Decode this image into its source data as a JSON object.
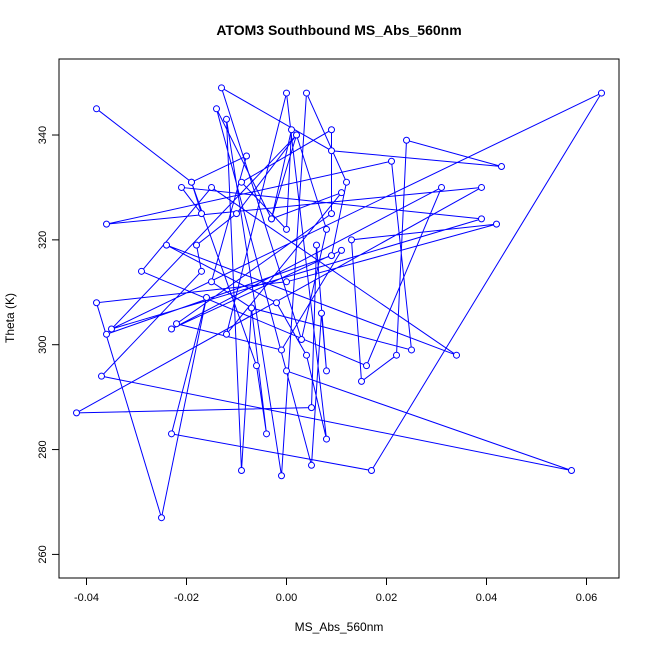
{
  "chart_data": {
    "type": "line",
    "title": "ATOM3 Southbound MS_Abs_560nm",
    "xlabel": "MS_Abs_560nm",
    "ylabel": "Theta (K)",
    "xlim": [
      -0.0455,
      0.0665
    ],
    "ylim": [
      255.5,
      354.5
    ],
    "xticks": [
      -0.04,
      -0.02,
      0.0,
      0.02,
      0.04,
      0.06
    ],
    "xtick_labels": [
      "-0.04",
      "-0.02",
      "0.00",
      "0.02",
      "0.04",
      "0.06"
    ],
    "yticks": [
      260,
      280,
      300,
      320,
      340
    ],
    "ytick_labels": [
      "260",
      "280",
      "300",
      "320",
      "340"
    ],
    "grid": false,
    "legend": "none",
    "series_color": "#0000ff",
    "series": [
      {
        "x": [
          -0.038,
          -0.019,
          -0.008,
          -0.015,
          -0.007,
          -0.009,
          -0.012,
          -0.001,
          0.004,
          0.012,
          0.009,
          -0.036,
          0.002,
          0.008,
          0.003,
          -0.013,
          0.009,
          0.043,
          0.024,
          0.022,
          0.015,
          0.013,
          0.042,
          0.0,
          -0.038,
          -0.025,
          -0.016,
          -0.023,
          0.017,
          0.063,
          -0.035,
          0.039,
          -0.021,
          -0.017,
          -0.019,
          -0.006,
          -0.004,
          -0.007,
          0.025,
          0.021,
          -0.036,
          0.039,
          -0.042,
          0.005,
          0.006,
          0.008,
          0.007,
          0.005,
          -0.014,
          -0.003,
          0.011,
          -0.012,
          0.0,
          0.008,
          0.004,
          -0.002,
          -0.024,
          0.034,
          -0.015,
          -0.029,
          0.016,
          0.031,
          -0.023,
          0.011,
          -0.001,
          -0.022,
          0.009,
          0.009,
          -0.009,
          0.0,
          0.001,
          -0.003,
          0.002,
          -0.01,
          -0.018,
          -0.017,
          -0.037,
          0.057,
          0.0
        ],
        "y": [
          345,
          331,
          336,
          312,
          307,
          276,
          343,
          275,
          348,
          331,
          317,
          302,
          340,
          322,
          301,
          349,
          337,
          334,
          339,
          298,
          293,
          320,
          323,
          312,
          308,
          267,
          309,
          283,
          276,
          348,
          303,
          324,
          330,
          325,
          331,
          296,
          283,
          307,
          299,
          335,
          323,
          330,
          287,
          288,
          319,
          295,
          306,
          277,
          345,
          324,
          329,
          302,
          348,
          282,
          298,
          308,
          319,
          298,
          330,
          314,
          296,
          330,
          303,
          318,
          299,
          304,
          325,
          341,
          331,
          322,
          341,
          324,
          340,
          325,
          319,
          314,
          294,
          276,
          295
        ]
      }
    ]
  }
}
